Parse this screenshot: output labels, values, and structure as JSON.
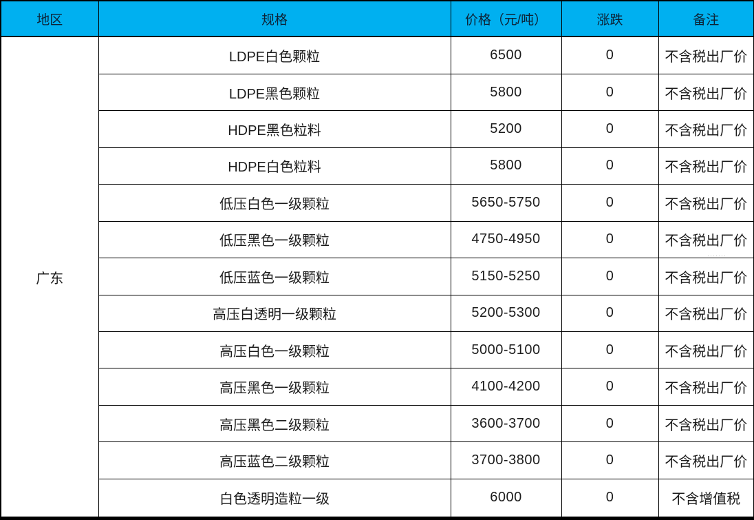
{
  "table": {
    "headers": {
      "region": "地区",
      "spec": "规格",
      "price": "价格（元/吨）",
      "change": "涨跌",
      "note": "备注"
    },
    "region": "广东",
    "rows": [
      {
        "spec": "LDPE白色颗粒",
        "price": "6500",
        "change": "0",
        "note": "不含税出厂价"
      },
      {
        "spec": "LDPE黑色颗粒",
        "price": "5800",
        "change": "0",
        "note": "不含税出厂价"
      },
      {
        "spec": "HDPE黑色粒料",
        "price": "5200",
        "change": "0",
        "note": "不含税出厂价"
      },
      {
        "spec": "HDPE白色粒料",
        "price": "5800",
        "change": "0",
        "note": "不含税出厂价"
      },
      {
        "spec": "低压白色一级颗粒",
        "price": "5650-5750",
        "change": "0",
        "note": "不含税出厂价"
      },
      {
        "spec": "低压黑色一级颗粒",
        "price": "4750-4950",
        "change": "0",
        "note": "不含税出厂价"
      },
      {
        "spec": "低压蓝色一级颗粒",
        "price": "5150-5250",
        "change": "0",
        "note": "不含税出厂价"
      },
      {
        "spec": "高压白透明一级颗粒",
        "price": "5200-5300",
        "change": "0",
        "note": "不含税出厂价"
      },
      {
        "spec": "高压白色一级颗粒",
        "price": "5000-5100",
        "change": "0",
        "note": "不含税出厂价"
      },
      {
        "spec": "高压黑色一级颗粒",
        "price": "4100-4200",
        "change": "0",
        "note": "不含税出厂价"
      },
      {
        "spec": "高压黑色二级颗粒",
        "price": "3600-3700",
        "change": "0",
        "note": "不含税出厂价"
      },
      {
        "spec": "高压蓝色二级颗粒",
        "price": "3700-3800",
        "change": "0",
        "note": "不含税出厂价"
      },
      {
        "spec": "白色透明造粒一级",
        "price": "6000",
        "change": "0",
        "note": "不含增值税"
      }
    ]
  },
  "colors": {
    "header_bg": "#00b0f0",
    "header_text": "#0d2235",
    "body_text": "#1c1c1c",
    "grid_border": "#000000"
  },
  "watermark": "·······"
}
